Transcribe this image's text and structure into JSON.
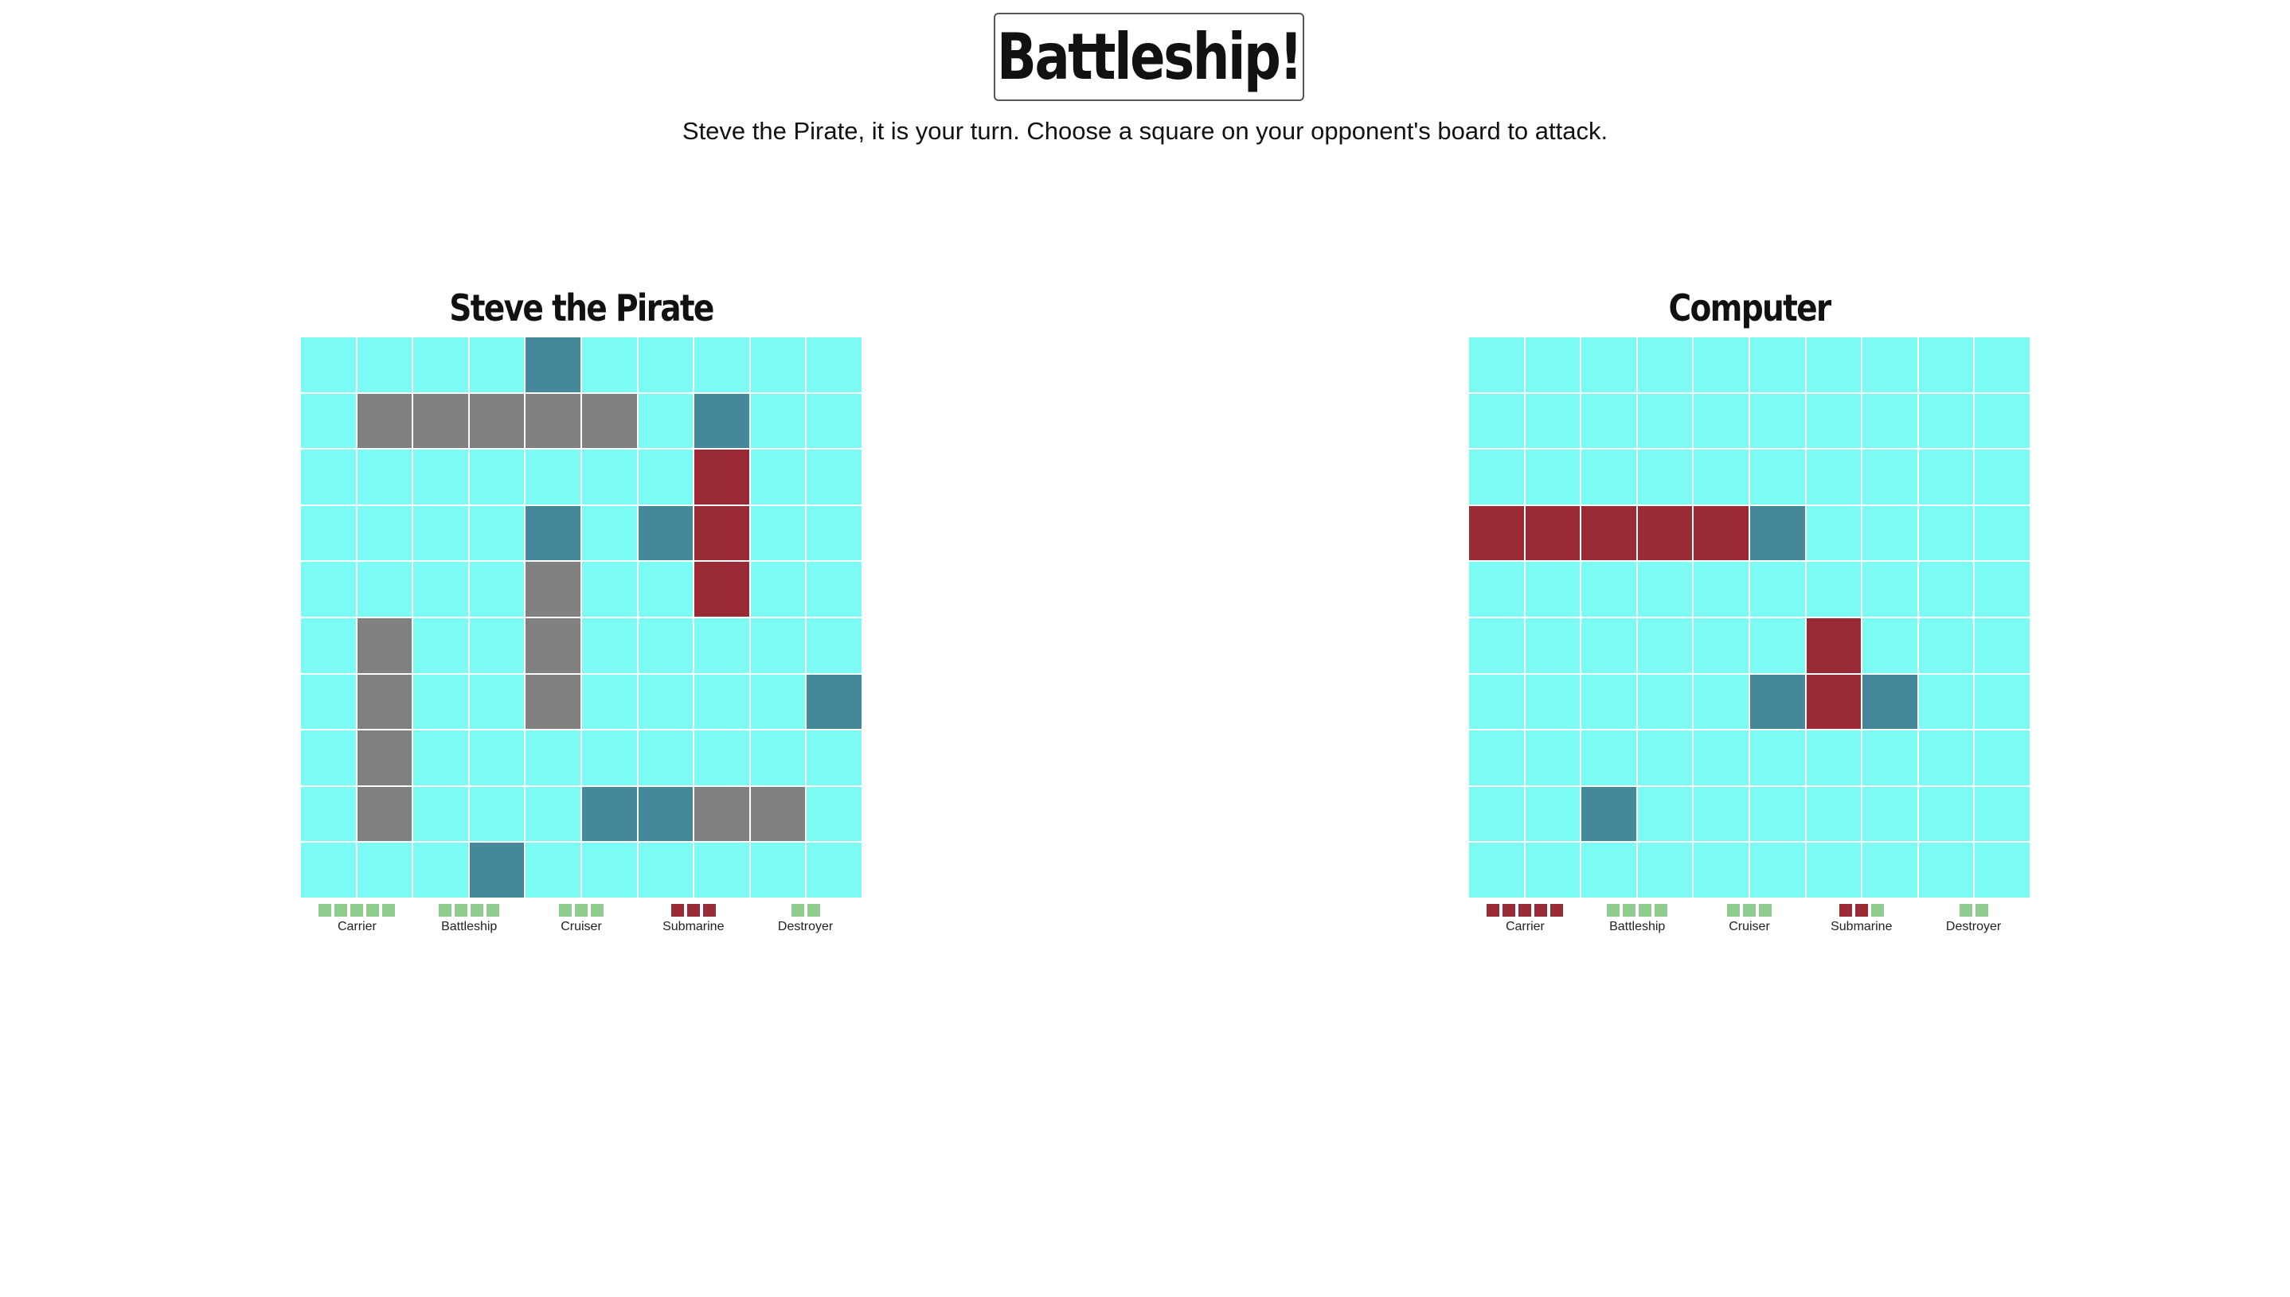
{
  "header": {
    "title": "Battleship!",
    "status": "Steve the Pirate, it is your turn. Choose a square on your opponent's board to attack."
  },
  "colors": {
    "water": "#7bfbf4",
    "miss": "#448899",
    "hit": "#9a2a35",
    "ship": "#808080",
    "peg_afloat": "#90cc90",
    "peg_hit": "#9a2a35"
  },
  "players": [
    {
      "name": "Steve the Pirate",
      "grid": [
        "....M.....",
        ".SSSSS.M..",
        ".......H..",
        "....M.MH..",
        "....S..H..",
        ".S..S.....",
        ".S..S....M",
        ".S........",
        ".S...MMSS.",
        "...M......"
      ],
      "fleet": [
        {
          "name": "Carrier",
          "pegs": [
            0,
            0,
            0,
            0,
            0
          ]
        },
        {
          "name": "Battleship",
          "pegs": [
            0,
            0,
            0,
            0
          ]
        },
        {
          "name": "Cruiser",
          "pegs": [
            0,
            0,
            0
          ]
        },
        {
          "name": "Submarine",
          "pegs": [
            1,
            1,
            1
          ]
        },
        {
          "name": "Destroyer",
          "pegs": [
            0,
            0
          ]
        }
      ]
    },
    {
      "name": "Computer",
      "grid": [
        "..........",
        "..........",
        "..........",
        "HHHHHM....",
        "..........",
        "......H...",
        ".....MHM..",
        "..........",
        "..M.......",
        ".........."
      ],
      "fleet": [
        {
          "name": "Carrier",
          "pegs": [
            1,
            1,
            1,
            1,
            1
          ]
        },
        {
          "name": "Battleship",
          "pegs": [
            0,
            0,
            0,
            0
          ]
        },
        {
          "name": "Cruiser",
          "pegs": [
            0,
            0,
            0
          ]
        },
        {
          "name": "Submarine",
          "pegs": [
            1,
            1,
            0
          ]
        },
        {
          "name": "Destroyer",
          "pegs": [
            0,
            0
          ]
        }
      ]
    }
  ]
}
